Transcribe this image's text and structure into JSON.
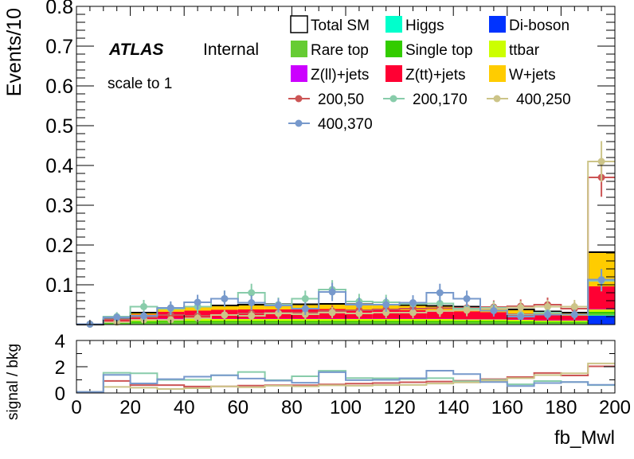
{
  "chart_data": [
    {
      "type": "bar",
      "panel": "main",
      "ylabel": "Events/10",
      "xlabel": "fb_Mwl",
      "xlim": [
        0,
        200
      ],
      "ylim": [
        0,
        0.8
      ],
      "x_ticks": [
        0,
        20,
        40,
        60,
        80,
        100,
        120,
        140,
        160,
        180,
        200
      ],
      "y_ticks": [
        0.1,
        0.2,
        0.3,
        0.4,
        0.5,
        0.6,
        0.7,
        0.8
      ],
      "y_tick_labels": [
        "0.1",
        "0.2",
        "0.3",
        "0.4",
        "0.5",
        "0.6",
        "0.7",
        "0.8"
      ],
      "bin_edges": [
        0,
        10,
        20,
        30,
        40,
        50,
        60,
        70,
        80,
        90,
        100,
        110,
        120,
        130,
        140,
        150,
        160,
        170,
        180,
        190,
        200
      ],
      "atlas_label": "ATLAS",
      "internal_label": "Internal",
      "note": "scale to 1",
      "stacked_background": [
        {
          "name": "Di-boson",
          "color": "#0033ff",
          "values": [
            0,
            0.0005,
            0.001,
            0.001,
            0.001,
            0.001,
            0.001,
            0.001,
            0.001,
            0.001,
            0.001,
            0.001,
            0.001,
            0.001,
            0.001,
            0.001,
            0.001,
            0.001,
            0.001,
            0.022
          ]
        },
        {
          "name": "Higgs",
          "color": "#00ffcc",
          "values": [
            0,
            0,
            0,
            0,
            0,
            0,
            0,
            0,
            0,
            0,
            0,
            0,
            0,
            0,
            0,
            0,
            0,
            0,
            0,
            0.001
          ]
        },
        {
          "name": "Rare top",
          "color": "#66cc33",
          "values": [
            0,
            0.002,
            0.004,
            0.005,
            0.005,
            0.005,
            0.005,
            0.005,
            0.005,
            0.005,
            0.005,
            0.005,
            0.005,
            0.005,
            0.005,
            0.005,
            0.004,
            0.004,
            0.004,
            0.005
          ]
        },
        {
          "name": "Single top",
          "color": "#33cc00",
          "values": [
            0,
            0.002,
            0.003,
            0.003,
            0.003,
            0.003,
            0.003,
            0.003,
            0.003,
            0.003,
            0.003,
            0.003,
            0.003,
            0.003,
            0.003,
            0.003,
            0.003,
            0.002,
            0.002,
            0.004
          ]
        },
        {
          "name": "ttbar",
          "color": "#ccff00",
          "values": [
            0,
            0.002,
            0.004,
            0.005,
            0.005,
            0.005,
            0.005,
            0.005,
            0.005,
            0.005,
            0.005,
            0.005,
            0.005,
            0.005,
            0.004,
            0.004,
            0.004,
            0.003,
            0.003,
            0.006
          ]
        },
        {
          "name": "Z(ll)+jets",
          "color": "#cc00ff",
          "values": [
            0,
            0,
            0.001,
            0.001,
            0.001,
            0.001,
            0.001,
            0.001,
            0.001,
            0.001,
            0.001,
            0.001,
            0.001,
            0.001,
            0.001,
            0.001,
            0.001,
            0.001,
            0.001,
            0.001
          ]
        },
        {
          "name": "Z(tt)+jets",
          "color": "#ff0033",
          "values": [
            0,
            0.005,
            0.012,
            0.017,
            0.02,
            0.022,
            0.023,
            0.023,
            0.023,
            0.024,
            0.023,
            0.022,
            0.021,
            0.02,
            0.019,
            0.017,
            0.015,
            0.013,
            0.011,
            0.057
          ]
        },
        {
          "name": "W+jets",
          "color": "#ffcc00",
          "values": [
            0,
            0.002,
            0.005,
            0.008,
            0.01,
            0.011,
            0.012,
            0.013,
            0.013,
            0.013,
            0.013,
            0.013,
            0.013,
            0.012,
            0.012,
            0.011,
            0.01,
            0.009,
            0.008,
            0.086
          ]
        }
      ],
      "total_sm": {
        "name": "Total SM",
        "values": [
          0,
          0.013,
          0.03,
          0.04,
          0.045,
          0.048,
          0.05,
          0.051,
          0.051,
          0.052,
          0.051,
          0.05,
          0.049,
          0.047,
          0.045,
          0.042,
          0.038,
          0.033,
          0.03,
          0.182
        ]
      },
      "signal": [
        {
          "name": "200,50",
          "color": "#cc5555",
          "values": [
            0.001,
            0.012,
            0.018,
            0.024,
            0.022,
            0.024,
            0.028,
            0.03,
            0.03,
            0.034,
            0.036,
            0.038,
            0.04,
            0.041,
            0.042,
            0.044,
            0.046,
            0.05,
            0.04,
            0.37
          ]
        },
        {
          "name": "200,170",
          "color": "#88ccaa",
          "values": [
            0.001,
            0.02,
            0.045,
            0.04,
            0.045,
            0.065,
            0.08,
            0.05,
            0.065,
            0.088,
            0.058,
            0.056,
            0.052,
            0.053,
            0.04,
            0.042,
            0.025,
            0.03,
            0.025,
            0.11
          ]
        },
        {
          "name": "400,250",
          "color": "#ccc488",
          "values": [
            0.001,
            0.006,
            0.012,
            0.012,
            0.016,
            0.024,
            0.022,
            0.028,
            0.026,
            0.03,
            0.028,
            0.03,
            0.03,
            0.034,
            0.036,
            0.04,
            0.043,
            0.045,
            0.045,
            0.41
          ]
        },
        {
          "name": "400,370",
          "color": "#7799cc",
          "values": [
            0.001,
            0.018,
            0.022,
            0.042,
            0.056,
            0.065,
            0.055,
            0.048,
            0.04,
            0.082,
            0.05,
            0.05,
            0.055,
            0.08,
            0.065,
            0.035,
            0.02,
            0.025,
            0.025,
            0.113
          ]
        }
      ],
      "legend_order": [
        "Total SM",
        "Higgs",
        "Di-boson",
        "Rare top",
        "Single top",
        "ttbar",
        "Z(ll)+jets",
        "Z(tt)+jets",
        "W+jets",
        "200,50",
        "200,170",
        "400,250",
        "400,370"
      ],
      "legend_placement": "top-right"
    },
    {
      "type": "line",
      "panel": "ratio",
      "ylabel": "signal / bkg",
      "xlabel": "fb_Mwl",
      "ylim": [
        0,
        4
      ],
      "y_ticks": [
        0,
        2,
        4
      ],
      "series": [
        {
          "name": "200,50",
          "values": [
            0.08,
            0.92,
            0.6,
            0.6,
            0.49,
            0.5,
            0.56,
            0.59,
            0.59,
            0.65,
            0.71,
            0.76,
            0.82,
            0.87,
            0.93,
            1.05,
            1.21,
            1.52,
            1.33,
            2.03
          ]
        },
        {
          "name": "200,170",
          "values": [
            0.08,
            1.54,
            1.5,
            1.0,
            1.0,
            1.35,
            1.6,
            0.98,
            1.27,
            1.69,
            1.14,
            1.12,
            1.06,
            1.13,
            0.89,
            1.0,
            0.66,
            0.91,
            0.83,
            0.6
          ]
        },
        {
          "name": "400,250",
          "values": [
            0.08,
            0.46,
            0.4,
            0.3,
            0.36,
            0.5,
            0.44,
            0.55,
            0.51,
            0.58,
            0.55,
            0.6,
            0.61,
            0.72,
            0.8,
            0.95,
            1.13,
            1.36,
            1.5,
            2.25
          ]
        },
        {
          "name": "400,370",
          "values": [
            0.08,
            1.38,
            0.73,
            1.05,
            1.24,
            1.35,
            1.1,
            0.94,
            0.78,
            1.58,
            0.98,
            1.0,
            1.12,
            1.7,
            1.44,
            0.83,
            0.53,
            0.76,
            0.83,
            0.62
          ]
        }
      ]
    }
  ]
}
